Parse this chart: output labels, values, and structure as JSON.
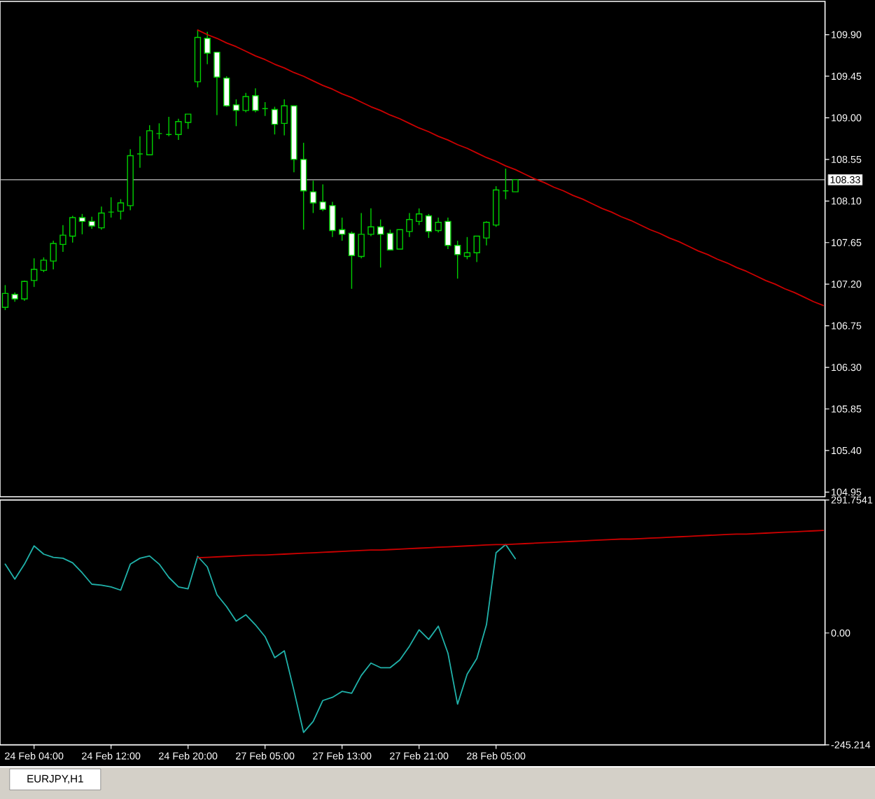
{
  "chart_data": [
    {
      "type": "candlestick",
      "title": "EURJPY,H1",
      "color": "#00d000",
      "categories": [
        null,
        null,
        null,
        null,
        null,
        null,
        null,
        null,
        null,
        null,
        null,
        null,
        null,
        null,
        null,
        null,
        null,
        null,
        null,
        null,
        null,
        null,
        null,
        null,
        null,
        null,
        null,
        null,
        null,
        null,
        null,
        null,
        null,
        null,
        null,
        null,
        null,
        null,
        null,
        null,
        null,
        null,
        null,
        null,
        null,
        null,
        null,
        null,
        null,
        null,
        null,
        null,
        null,
        null,
        null,
        null,
        null,
        null,
        null,
        null,
        null,
        null,
        null,
        null,
        null,
        null,
        null,
        null,
        null,
        null,
        null,
        null,
        null,
        null,
        null,
        null,
        null,
        null,
        null,
        null,
        null,
        null,
        null,
        null,
        null,
        null
      ],
      "ohlc": [
        [
          106.95,
          107.19,
          106.92,
          107.1
        ],
        [
          107.09,
          107.11,
          107.01,
          107.04
        ],
        [
          107.04,
          107.24,
          107.02,
          107.23
        ],
        [
          107.24,
          107.48,
          107.17,
          107.36
        ],
        [
          107.35,
          107.49,
          107.33,
          107.46
        ],
        [
          107.45,
          107.67,
          107.36,
          107.64
        ],
        [
          107.63,
          107.84,
          107.55,
          107.73
        ],
        [
          107.72,
          107.94,
          107.65,
          107.92
        ],
        [
          107.92,
          107.96,
          107.74,
          107.88
        ],
        [
          107.88,
          107.93,
          107.8,
          107.83
        ],
        [
          107.81,
          108.04,
          107.79,
          107.97
        ],
        [
          107.98,
          108.14,
          107.92,
          107.98
        ],
        [
          107.99,
          108.12,
          107.9,
          108.08
        ],
        [
          108.05,
          108.66,
          108.0,
          108.59
        ],
        [
          108.61,
          108.8,
          108.46,
          108.61
        ],
        [
          108.6,
          108.92,
          108.6,
          108.86
        ],
        [
          108.83,
          108.94,
          108.77,
          108.83
        ],
        [
          108.82,
          109.01,
          108.8,
          108.82
        ],
        [
          108.82,
          108.99,
          108.76,
          108.96
        ],
        [
          108.95,
          109.04,
          108.88,
          109.04
        ],
        [
          109.39,
          109.95,
          109.33,
          109.87
        ],
        [
          109.86,
          109.93,
          109.58,
          109.7
        ],
        [
          109.71,
          109.71,
          109.03,
          109.44
        ],
        [
          109.43,
          109.45,
          109.12,
          109.13
        ],
        [
          109.14,
          109.2,
          108.91,
          109.08
        ],
        [
          109.08,
          109.27,
          109.06,
          109.23
        ],
        [
          109.24,
          109.32,
          109.06,
          109.08
        ],
        [
          109.1,
          109.17,
          109.02,
          109.1
        ],
        [
          109.09,
          109.12,
          108.82,
          108.93
        ],
        [
          108.94,
          109.2,
          108.81,
          109.13
        ],
        [
          109.13,
          109.13,
          108.41,
          108.55
        ],
        [
          108.55,
          108.73,
          107.79,
          108.21
        ],
        [
          108.2,
          108.32,
          107.97,
          108.08
        ],
        [
          108.09,
          108.28,
          107.99,
          108.01
        ],
        [
          108.05,
          108.09,
          107.71,
          107.78
        ],
        [
          107.79,
          107.92,
          107.67,
          107.74
        ],
        [
          107.75,
          107.77,
          107.15,
          107.51
        ],
        [
          107.5,
          107.97,
          107.48,
          107.74
        ],
        [
          107.74,
          108.02,
          107.72,
          107.82
        ],
        [
          107.82,
          107.9,
          107.38,
          107.74
        ],
        [
          107.75,
          107.79,
          107.57,
          107.57
        ],
        [
          107.58,
          107.79,
          107.58,
          107.79
        ],
        [
          107.77,
          107.97,
          107.71,
          107.9
        ],
        [
          107.88,
          108.02,
          107.84,
          107.96
        ],
        [
          107.94,
          107.96,
          107.7,
          107.77
        ],
        [
          107.78,
          107.92,
          107.76,
          107.87
        ],
        [
          107.88,
          107.92,
          107.58,
          107.62
        ],
        [
          107.62,
          107.67,
          107.26,
          107.52
        ],
        [
          107.5,
          107.71,
          107.47,
          107.54
        ],
        [
          107.54,
          107.72,
          107.44,
          107.72
        ],
        [
          107.7,
          107.88,
          107.62,
          107.87
        ],
        [
          107.84,
          108.26,
          107.82,
          108.22
        ],
        [
          108.21,
          108.45,
          108.12,
          108.21
        ],
        [
          108.2,
          108.33,
          108.2,
          108.33
        ],
        null,
        null,
        null,
        null,
        null,
        null,
        null,
        null,
        null,
        null,
        null,
        null,
        null,
        null,
        null,
        null,
        null,
        null,
        null,
        null,
        null,
        null,
        null,
        null,
        null,
        null,
        null,
        null,
        null,
        null,
        null,
        null
      ],
      "colors": [
        "#000000",
        "#ffffff",
        "#000000",
        "#000000",
        "#000000",
        "#000000",
        "#000000",
        "#000000",
        "#ffffff",
        "#ffffff",
        "#000000",
        null,
        "#000000",
        "#000000",
        null,
        "#000000",
        null,
        null,
        "#000000",
        "#000000",
        "#000000",
        "#ffffff",
        "#ffffff",
        "#ffffff",
        "#ffffff",
        "#000000",
        "#ffffff",
        null,
        "#ffffff",
        "#000000",
        "#ffffff",
        "#ffffff",
        "#ffffff",
        "#ffffff",
        "#ffffff",
        "#ffffff",
        "#ffffff",
        "#000000",
        "#000000",
        "#ffffff",
        "#ffffff",
        "#000000",
        "#000000",
        "#000000",
        "#ffffff",
        "#000000",
        "#ffffff",
        "#ffffff",
        "#000000",
        "#000000",
        "#000000",
        "#000000",
        null,
        "#000000",
        null,
        null,
        null,
        null,
        null,
        null,
        null,
        null,
        null,
        null,
        null,
        null,
        null,
        null,
        null,
        null,
        null,
        null,
        null,
        null,
        null,
        null,
        null,
        null,
        null,
        null,
        null,
        null,
        null,
        null,
        null,
        null
      ],
      "series": [
        {
          "type": "line",
          "color": "#cc0000",
          "values": [
            null,
            null,
            null,
            null,
            null,
            null,
            null,
            null,
            null,
            null,
            null,
            null,
            null,
            null,
            null,
            null,
            null,
            null,
            null,
            null,
            109.95,
            109.9,
            109.86,
            109.81,
            109.77,
            109.72,
            109.67,
            109.63,
            109.58,
            109.54,
            109.49,
            109.45,
            109.4,
            109.35,
            109.31,
            109.26,
            109.22,
            109.17,
            109.12,
            109.08,
            109.03,
            108.99,
            108.94,
            108.89,
            108.85,
            108.8,
            108.76,
            108.71,
            108.67,
            108.62,
            108.57,
            108.53,
            108.48,
            108.44,
            108.39,
            108.34,
            108.3,
            108.25,
            108.21,
            108.16,
            108.12,
            108.07,
            108.02,
            107.98,
            107.93,
            107.89,
            107.84,
            107.79,
            107.75,
            107.7,
            107.66,
            107.61,
            107.56,
            107.52,
            107.47,
            107.43,
            107.38,
            107.34,
            107.29,
            107.24,
            107.2,
            107.15,
            107.11,
            107.06,
            107.01,
            106.97
          ]
        }
      ],
      "ref_lines": [
        {
          "axis": "y",
          "value": 108.33,
          "label": "108.33",
          "color": "#c0c0c0"
        }
      ],
      "ylim": [
        104.9,
        110.26
      ],
      "yticks": [
        {
          "value": 109.9,
          "label": "109.90"
        },
        109.45,
        {
          "value": 109,
          "label": "109.00"
        },
        108.55,
        {
          "value": 108.1,
          "label": "108.10"
        },
        107.65,
        {
          "value": 107.2,
          "label": "107.20"
        },
        106.75,
        {
          "value": 106.3,
          "label": "106.30"
        },
        105.85,
        {
          "value": 105.4,
          "label": "105.40"
        },
        104.95
      ]
    },
    {
      "type": "line",
      "categories": [
        null,
        null,
        null,
        "24 Feb 04:00",
        null,
        null,
        null,
        null,
        null,
        null,
        null,
        "24 Feb 12:00",
        null,
        null,
        null,
        null,
        null,
        null,
        null,
        "24 Feb 20:00",
        null,
        null,
        null,
        null,
        null,
        null,
        null,
        "27 Feb 05:00",
        null,
        null,
        null,
        null,
        null,
        null,
        null,
        "27 Feb 13:00",
        null,
        null,
        null,
        null,
        null,
        null,
        null,
        "27 Feb 21:00",
        null,
        null,
        null,
        null,
        null,
        null,
        null,
        "28 Feb 05:00",
        null,
        null,
        null,
        null,
        null,
        null,
        null,
        null,
        null,
        null,
        null,
        null,
        null,
        null,
        null,
        null,
        null,
        null,
        null,
        null,
        null,
        null,
        null,
        null,
        null,
        null,
        null,
        null,
        null,
        null,
        null,
        null,
        null,
        null
      ],
      "series": [
        {
          "color": "#20b2aa",
          "values": [
            151,
            118,
            151,
            191,
            173,
            166,
            164,
            154,
            132,
            107,
            105,
            101,
            94,
            151,
            164,
            169,
            151,
            122,
            101,
            97,
            168,
            145,
            84,
            58,
            26,
            40,
            18,
            -8,
            -54,
            -39,
            -126,
            -218,
            -194,
            -148,
            -141,
            -128,
            -132,
            -93,
            -66,
            -76,
            -76,
            -59,
            -29,
            7,
            -14,
            15,
            -44,
            -156,
            -90,
            -56,
            18,
            176,
            194,
            163,
            null,
            null,
            null,
            null,
            null,
            null,
            null,
            null,
            null,
            null,
            null,
            null,
            null,
            null,
            null,
            null,
            null,
            null,
            null,
            null,
            null,
            null,
            null,
            null,
            null,
            null,
            null,
            null,
            null,
            null,
            null,
            null
          ]
        },
        {
          "type": "line",
          "color": "#cc0000",
          "values": [
            null,
            null,
            null,
            null,
            null,
            null,
            null,
            null,
            null,
            null,
            null,
            null,
            null,
            null,
            null,
            null,
            null,
            null,
            null,
            null,
            165,
            166,
            167,
            168,
            169,
            170,
            171,
            171,
            172,
            173,
            174,
            175,
            176,
            177,
            178,
            179,
            180,
            181,
            182,
            182,
            183,
            184,
            185,
            186,
            187,
            188,
            189,
            190,
            191,
            192,
            193,
            194,
            194,
            195,
            196,
            197,
            198,
            199,
            200,
            201,
            202,
            203,
            204,
            205,
            206,
            206,
            207,
            208,
            209,
            210,
            211,
            212,
            213,
            214,
            215,
            216,
            217,
            217,
            218,
            219,
            220,
            221,
            222,
            223,
            224,
            225
          ]
        }
      ],
      "ylim": [
        -245.214,
        291.7541
      ],
      "yticks": [
        -245.214,
        {
          "value": 0,
          "label": "0.00"
        },
        291.7541
      ]
    }
  ]
}
